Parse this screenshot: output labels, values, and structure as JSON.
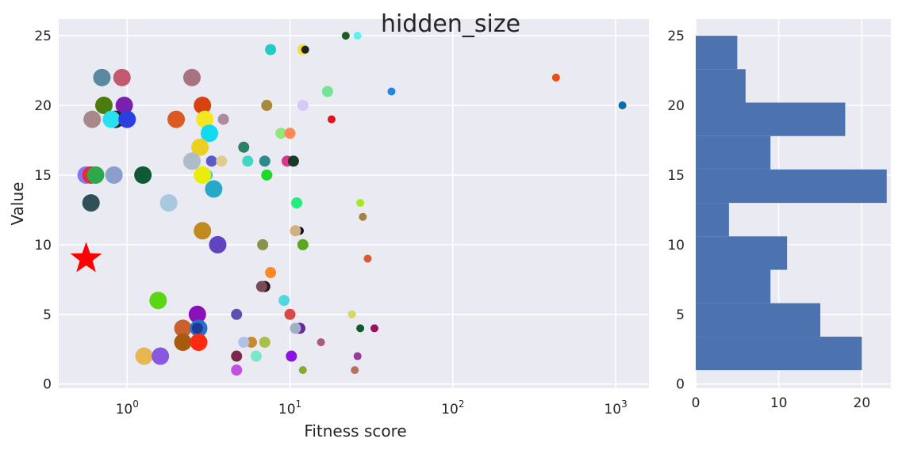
{
  "chart_data": [
    {
      "type": "scatter",
      "title": "hidden_size",
      "xlabel": "Fitness score",
      "ylabel": "Value",
      "xscale": "log",
      "xlim": [
        0.38,
        1600
      ],
      "ylim": [
        -0.3,
        26.2
      ],
      "grid": true,
      "background": "#EAEAF2",
      "x_ticks": [
        {
          "value": 1,
          "label": "10^0"
        },
        {
          "value": 10,
          "label": "10^1"
        },
        {
          "value": 100,
          "label": "10^2"
        },
        {
          "value": 1000,
          "label": "10^3"
        }
      ],
      "y_ticks": [
        0,
        5,
        10,
        15,
        20,
        25
      ],
      "best": {
        "x": 0.56,
        "y": 9,
        "marker": "star",
        "color": "#FF0000"
      },
      "points": [
        {
          "x": 22,
          "y": 25,
          "color": "#1B5E20",
          "size": "s"
        },
        {
          "x": 26,
          "y": 25,
          "color": "#5CF2F2",
          "size": "s"
        },
        {
          "x": 7.6,
          "y": 24,
          "color": "#22CCC4",
          "size": "m"
        },
        {
          "x": 12,
          "y": 24,
          "color": "#F2E13C",
          "size": "m"
        },
        {
          "x": 12.4,
          "y": 24,
          "color": "#222222",
          "size": "s"
        },
        {
          "x": 0.7,
          "y": 22,
          "color": "#5A8AA0",
          "size": "l"
        },
        {
          "x": 0.93,
          "y": 22,
          "color": "#C4586E",
          "size": "l"
        },
        {
          "x": 2.5,
          "y": 22,
          "color": "#A8737F",
          "size": "l"
        },
        {
          "x": 430,
          "y": 22,
          "color": "#EE4B12",
          "size": "s"
        },
        {
          "x": 17,
          "y": 21,
          "color": "#74E394",
          "size": "m"
        },
        {
          "x": 42,
          "y": 21,
          "color": "#1E88E5",
          "size": "s"
        },
        {
          "x": 0.72,
          "y": 20,
          "color": "#4B7D0E",
          "size": "l"
        },
        {
          "x": 0.96,
          "y": 20,
          "color": "#7B1FAE",
          "size": "l"
        },
        {
          "x": 2.9,
          "y": 20,
          "color": "#D84210",
          "size": "l"
        },
        {
          "x": 7.2,
          "y": 20,
          "color": "#A88A3A",
          "size": "m"
        },
        {
          "x": 12,
          "y": 20,
          "color": "#D8C8F5",
          "size": "m"
        },
        {
          "x": 1100,
          "y": 20,
          "color": "#0B6EA0",
          "size": "s"
        },
        {
          "x": 0.61,
          "y": 19,
          "color": "#A88888",
          "size": "l"
        },
        {
          "x": 0.85,
          "y": 19,
          "color": "#222222",
          "size": "l"
        },
        {
          "x": 0.8,
          "y": 19,
          "color": "#29E0EE",
          "size": "l"
        },
        {
          "x": 1.0,
          "y": 19,
          "color": "#2A3FE0",
          "size": "l"
        },
        {
          "x": 2.0,
          "y": 19,
          "color": "#DA5A22",
          "size": "l"
        },
        {
          "x": 3.0,
          "y": 19,
          "color": "#F5E623",
          "size": "l"
        },
        {
          "x": 3.9,
          "y": 19,
          "color": "#AE8AA0",
          "size": "m"
        },
        {
          "x": 18,
          "y": 19,
          "color": "#E0121E",
          "size": "s"
        },
        {
          "x": 8.8,
          "y": 18,
          "color": "#90E87C",
          "size": "m"
        },
        {
          "x": 10,
          "y": 18,
          "color": "#FF8855",
          "size": "m"
        },
        {
          "x": 3.2,
          "y": 18,
          "color": "#12D8F0",
          "size": "l"
        },
        {
          "x": 2.8,
          "y": 17,
          "color": "#ECD020",
          "size": "l"
        },
        {
          "x": 5.2,
          "y": 17,
          "color": "#2C8068",
          "size": "m"
        },
        {
          "x": 2.5,
          "y": 16,
          "color": "#ACBCC8",
          "size": "l"
        },
        {
          "x": 3.3,
          "y": 16,
          "color": "#5A5ACC",
          "size": "m"
        },
        {
          "x": 3.8,
          "y": 16,
          "color": "#E0CC90",
          "size": "m"
        },
        {
          "x": 5.5,
          "y": 16,
          "color": "#40D8C0",
          "size": "m"
        },
        {
          "x": 7.0,
          "y": 16,
          "color": "#2C8C8C",
          "size": "m"
        },
        {
          "x": 9.6,
          "y": 16,
          "color": "#D8388C",
          "size": "m"
        },
        {
          "x": 10.5,
          "y": 16,
          "color": "#1B3A28",
          "size": "m"
        },
        {
          "x": 0.56,
          "y": 15,
          "color": "#8A76EE",
          "size": "l"
        },
        {
          "x": 0.6,
          "y": 15,
          "color": "#E8283C",
          "size": "l"
        },
        {
          "x": 0.64,
          "y": 15,
          "color": "#2EA84A",
          "size": "l"
        },
        {
          "x": 0.83,
          "y": 15,
          "color": "#8C9ECC",
          "size": "l"
        },
        {
          "x": 1.25,
          "y": 15,
          "color": "#0E5A35",
          "size": "l"
        },
        {
          "x": 3.1,
          "y": 15,
          "color": "#2AD8B8",
          "size": "m"
        },
        {
          "x": 2.9,
          "y": 15,
          "color": "#E8EE0A",
          "size": "l"
        },
        {
          "x": 7.2,
          "y": 15,
          "color": "#20D82C",
          "size": "m"
        },
        {
          "x": 3.5,
          "y": 14,
          "color": "#1E4E68",
          "size": "m"
        },
        {
          "x": 3.4,
          "y": 14,
          "color": "#28A8C8",
          "size": "l"
        },
        {
          "x": 0.6,
          "y": 13,
          "color": "#2E5058",
          "size": "l"
        },
        {
          "x": 1.8,
          "y": 13,
          "color": "#A8C8DE",
          "size": "l"
        },
        {
          "x": 11,
          "y": 13,
          "color": "#22EE7C",
          "size": "m"
        },
        {
          "x": 27,
          "y": 13,
          "color": "#A8E822",
          "size": "s"
        },
        {
          "x": 28,
          "y": 12,
          "color": "#A8823C",
          "size": "s"
        },
        {
          "x": 2.9,
          "y": 11,
          "color": "#C08A20",
          "size": "l"
        },
        {
          "x": 11.5,
          "y": 11,
          "color": "#0E0E22",
          "size": "s"
        },
        {
          "x": 10.8,
          "y": 11,
          "color": "#D0B080",
          "size": "m"
        },
        {
          "x": 3.6,
          "y": 10,
          "color": "#6044C0",
          "size": "l"
        },
        {
          "x": 6.8,
          "y": 10,
          "color": "#88944A",
          "size": "m"
        },
        {
          "x": 12,
          "y": 10,
          "color": "#58A820",
          "size": "m"
        },
        {
          "x": 30,
          "y": 9,
          "color": "#D85A30",
          "size": "s"
        },
        {
          "x": 7.6,
          "y": 8,
          "color": "#FF8825",
          "size": "m"
        },
        {
          "x": 7.0,
          "y": 7,
          "color": "#2A1A1A",
          "size": "m"
        },
        {
          "x": 6.7,
          "y": 7,
          "color": "#7A4A58",
          "size": "m"
        },
        {
          "x": 1.55,
          "y": 6,
          "color": "#58D812",
          "size": "l"
        },
        {
          "x": 9.2,
          "y": 6,
          "color": "#50D8E0",
          "size": "m"
        },
        {
          "x": 2.7,
          "y": 5,
          "color": "#8C10B8",
          "size": "l"
        },
        {
          "x": 4.7,
          "y": 5,
          "color": "#5E50B0",
          "size": "m"
        },
        {
          "x": 10,
          "y": 5,
          "color": "#D84A4A",
          "size": "m"
        },
        {
          "x": 24,
          "y": 5,
          "color": "#D8D860",
          "size": "s"
        },
        {
          "x": 2.2,
          "y": 4,
          "color": "#C86030",
          "size": "l"
        },
        {
          "x": 2.75,
          "y": 4,
          "color": "#2A70C8",
          "size": "l"
        },
        {
          "x": 2.7,
          "y": 4,
          "color": "#1E3A98",
          "size": "m"
        },
        {
          "x": 11.5,
          "y": 4,
          "color": "#6A2A98",
          "size": "m"
        },
        {
          "x": 10.8,
          "y": 4,
          "color": "#A0B0C8",
          "size": "m"
        },
        {
          "x": 27,
          "y": 4,
          "color": "#0E5A2A",
          "size": "s"
        },
        {
          "x": 33,
          "y": 4,
          "color": "#9A1060",
          "size": "s"
        },
        {
          "x": 2.2,
          "y": 3,
          "color": "#A85A10",
          "size": "l"
        },
        {
          "x": 2.75,
          "y": 3,
          "color": "#FF2A10",
          "size": "l"
        },
        {
          "x": 5.8,
          "y": 3,
          "color": "#C88A30",
          "size": "m"
        },
        {
          "x": 5.2,
          "y": 3,
          "color": "#B0C0E8",
          "size": "m"
        },
        {
          "x": 7.0,
          "y": 3,
          "color": "#A8C048",
          "size": "m"
        },
        {
          "x": 15.5,
          "y": 3,
          "color": "#A85A80",
          "size": "s"
        },
        {
          "x": 1.27,
          "y": 2,
          "color": "#E8B850",
          "size": "l"
        },
        {
          "x": 1.6,
          "y": 2,
          "color": "#8858E0",
          "size": "l"
        },
        {
          "x": 4.7,
          "y": 2,
          "color": "#7A2A48",
          "size": "m"
        },
        {
          "x": 6.2,
          "y": 2,
          "color": "#78E8C8",
          "size": "m"
        },
        {
          "x": 10.2,
          "y": 2,
          "color": "#8A12E8",
          "size": "m"
        },
        {
          "x": 26,
          "y": 2,
          "color": "#9A3A9A",
          "size": "s"
        },
        {
          "x": 4.7,
          "y": 1,
          "color": "#C050E0",
          "size": "m"
        },
        {
          "x": 12,
          "y": 1,
          "color": "#8AA830",
          "size": "s"
        },
        {
          "x": 25,
          "y": 1,
          "color": "#B87060",
          "size": "s"
        }
      ]
    },
    {
      "type": "bar",
      "orientation": "horizontal",
      "ylim": [
        -0.3,
        26.2
      ],
      "xlim": [
        0,
        23.5
      ],
      "grid": true,
      "background": "#EAEAF2",
      "color": "#4C72B0",
      "x_ticks": [
        0,
        10,
        20
      ],
      "y_ticks": [
        0,
        5,
        10,
        15,
        20,
        25
      ],
      "bins": [
        {
          "from": 1.0,
          "to": 3.4,
          "count": 20
        },
        {
          "from": 3.4,
          "to": 5.8,
          "count": 15
        },
        {
          "from": 5.8,
          "to": 8.2,
          "count": 9
        },
        {
          "from": 8.2,
          "to": 10.6,
          "count": 11
        },
        {
          "from": 10.6,
          "to": 13.0,
          "count": 4
        },
        {
          "from": 13.0,
          "to": 15.4,
          "count": 23
        },
        {
          "from": 15.4,
          "to": 17.8,
          "count": 9
        },
        {
          "from": 17.8,
          "to": 20.2,
          "count": 18
        },
        {
          "from": 20.2,
          "to": 22.6,
          "count": 6
        },
        {
          "from": 22.6,
          "to": 25.0,
          "count": 5
        }
      ]
    }
  ]
}
